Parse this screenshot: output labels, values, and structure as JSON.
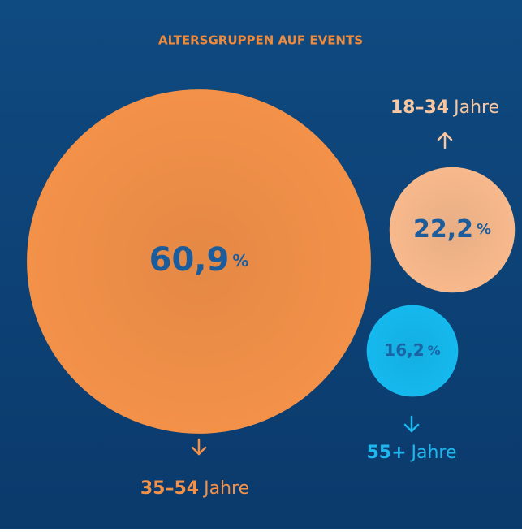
{
  "chart_data": {
    "type": "bubble",
    "title": "ALTERSGRUPPEN AUF EVENTS",
    "categories": [
      "35–54",
      "18–34",
      "55+"
    ],
    "category_suffix": "Jahre",
    "values": [
      60.9,
      22.2,
      16.2
    ],
    "value_labels": [
      "60,9",
      "22,2",
      "16,2"
    ],
    "unit": "%",
    "colors": [
      "#f39149",
      "#f7b98c",
      "#15b9ee"
    ],
    "label_colors": [
      "#f39149",
      "#f8c6a0",
      "#1fb7ee"
    ]
  }
}
